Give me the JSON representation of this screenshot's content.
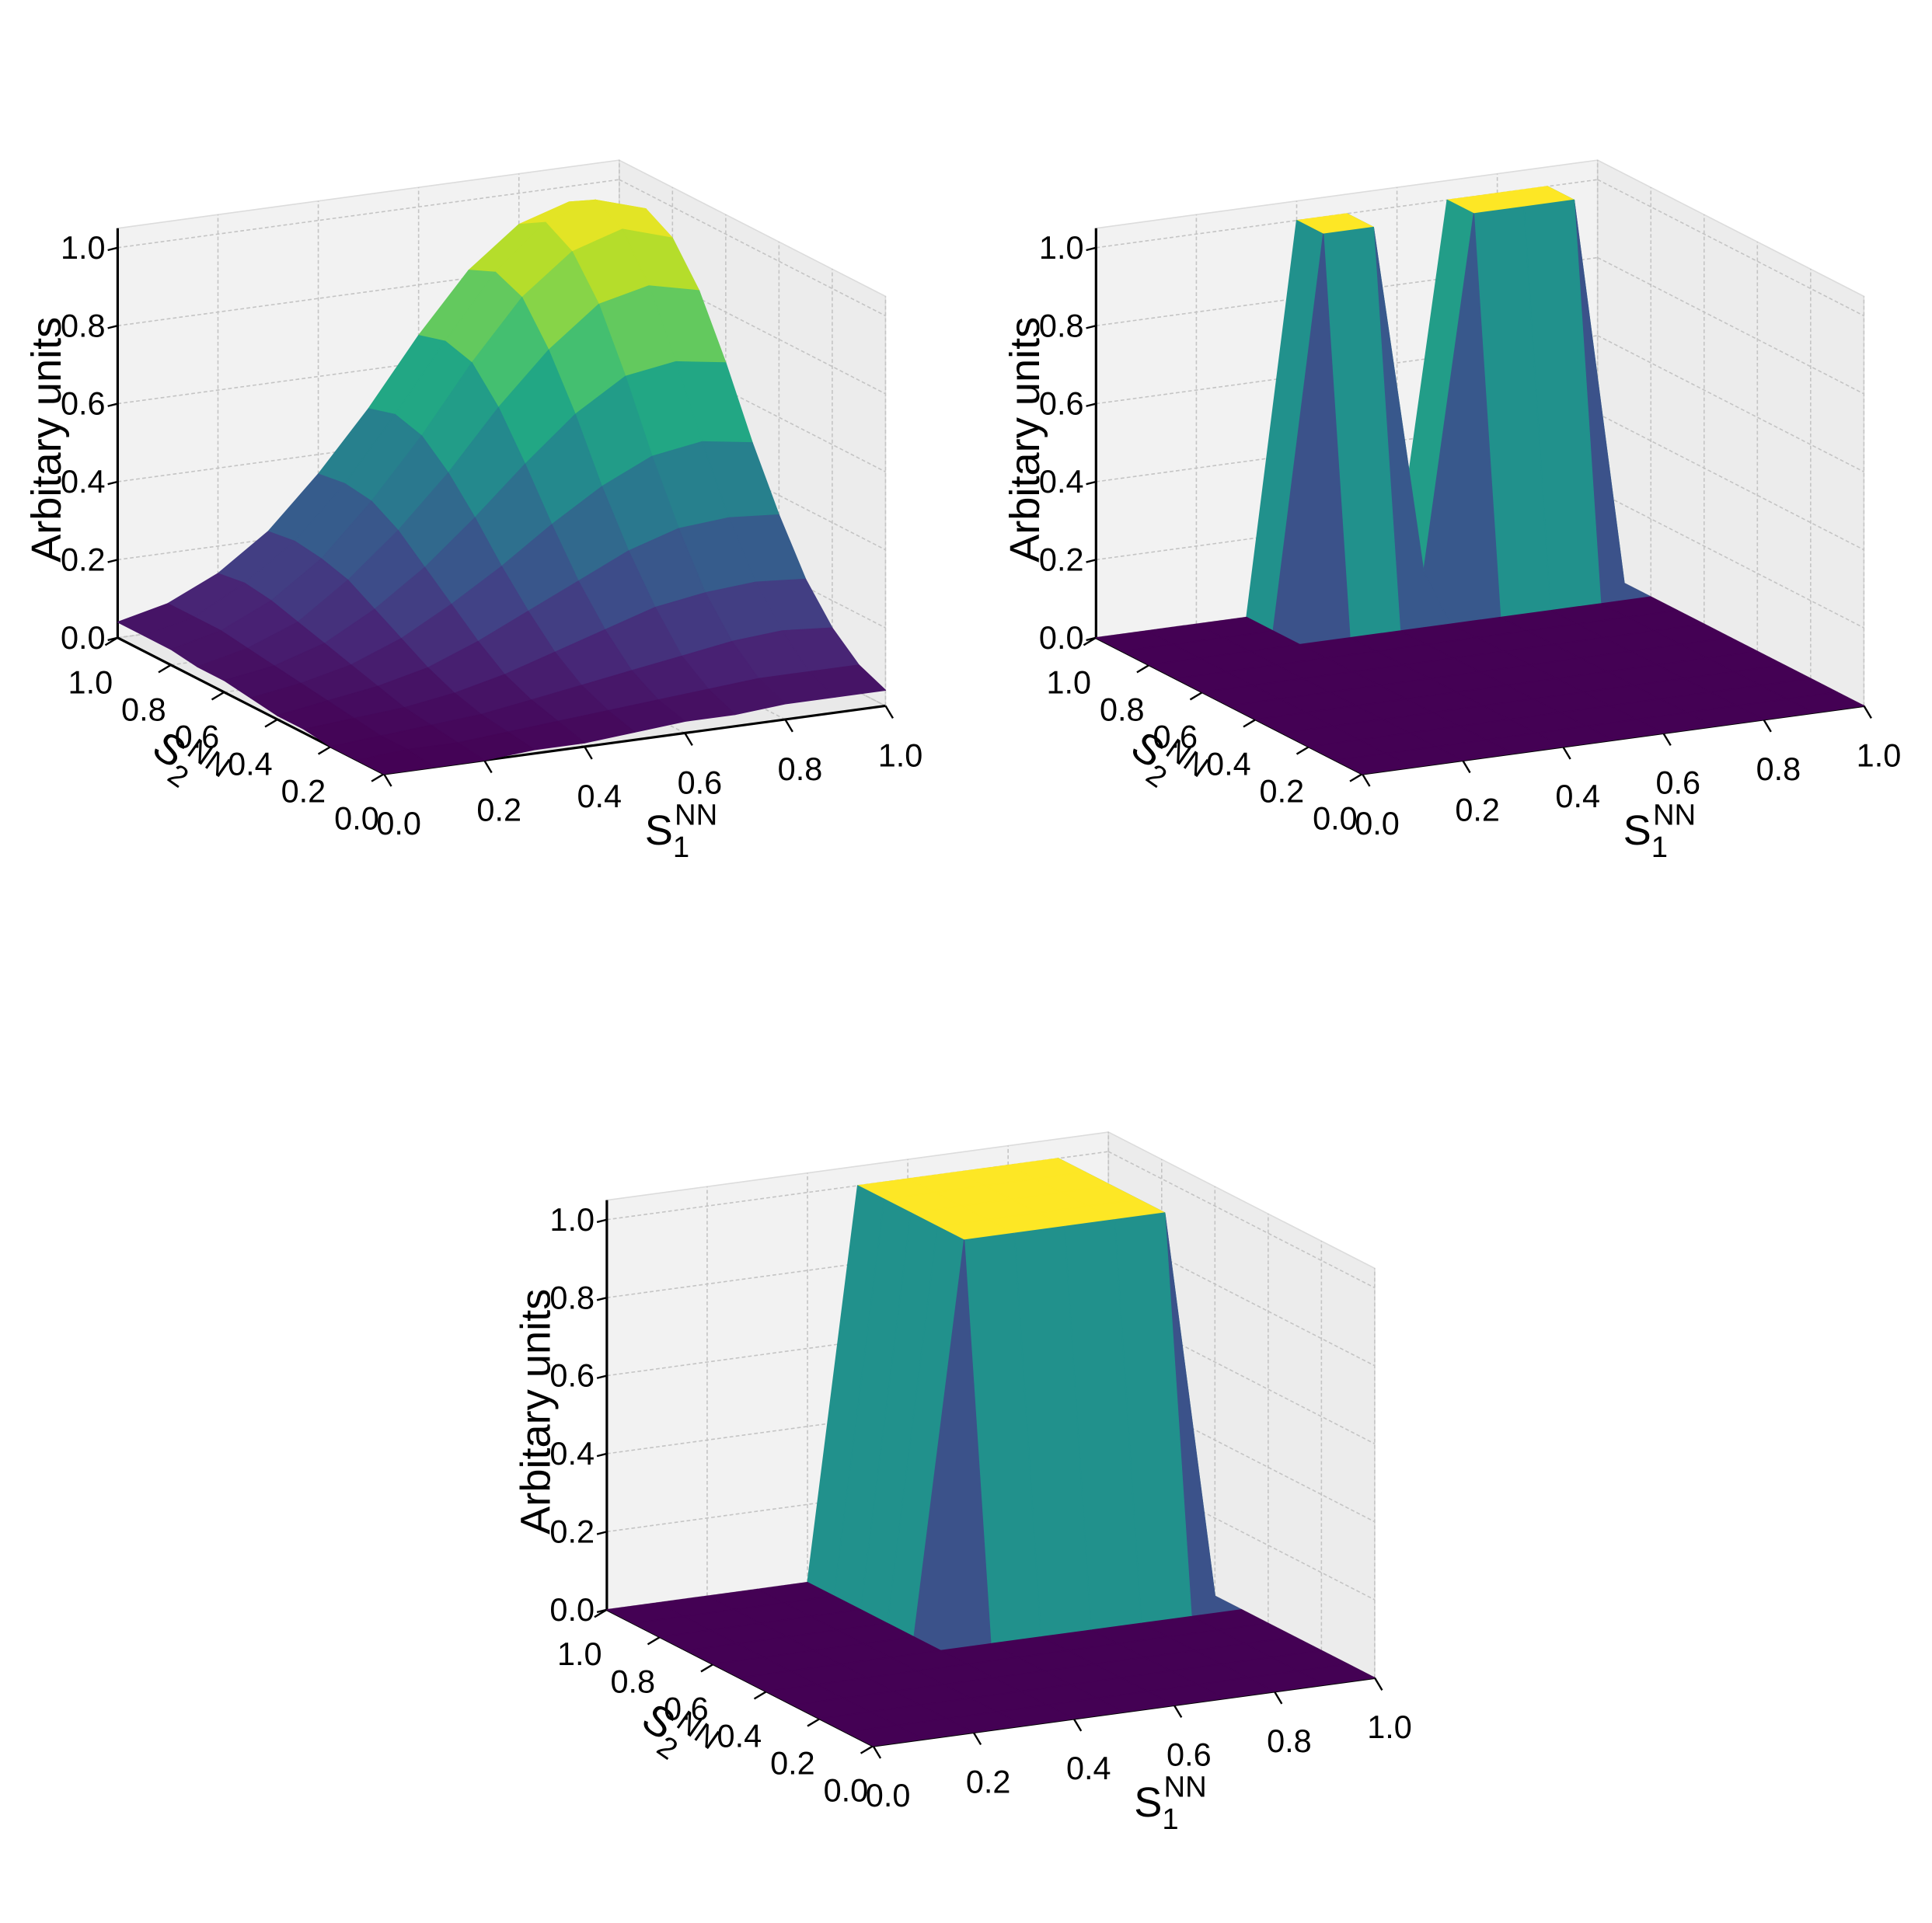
{
  "chart_data": [
    {
      "type": "surface",
      "colormap": "viridis",
      "zlabel": "Arbitary units",
      "xlabel": {
        "text": "S",
        "subscript": "1",
        "superscript": "NN"
      },
      "ylabel": {
        "text": "S",
        "subscript": "2",
        "superscript": "NN"
      },
      "x": [
        0,
        0.1,
        0.2,
        0.3,
        0.4,
        0.5,
        0.6,
        0.7,
        0.8,
        0.9,
        1
      ],
      "y": [
        0,
        0.1,
        0.2,
        0.3,
        0.4,
        0.5,
        0.6,
        0.7,
        0.8,
        0.9,
        1
      ],
      "z": [
        [
          0.0,
          0.0,
          0.0,
          0.01,
          0.01,
          0.02,
          0.03,
          0.03,
          0.04,
          0.04,
          0.04
        ],
        [
          0.0,
          0.01,
          0.01,
          0.02,
          0.03,
          0.04,
          0.05,
          0.06,
          0.07,
          0.07,
          0.07
        ],
        [
          0.0,
          0.01,
          0.02,
          0.03,
          0.05,
          0.07,
          0.09,
          0.11,
          0.13,
          0.14,
          0.13
        ],
        [
          0.01,
          0.02,
          0.03,
          0.05,
          0.08,
          0.12,
          0.16,
          0.2,
          0.22,
          0.23,
          0.22
        ],
        [
          0.01,
          0.03,
          0.05,
          0.08,
          0.13,
          0.19,
          0.25,
          0.31,
          0.35,
          0.36,
          0.35
        ],
        [
          0.02,
          0.04,
          0.07,
          0.12,
          0.19,
          0.27,
          0.36,
          0.44,
          0.5,
          0.52,
          0.5
        ],
        [
          0.03,
          0.05,
          0.09,
          0.16,
          0.25,
          0.36,
          0.48,
          0.59,
          0.67,
          0.69,
          0.67
        ],
        [
          0.03,
          0.06,
          0.11,
          0.2,
          0.31,
          0.44,
          0.59,
          0.72,
          0.82,
          0.85,
          0.82
        ],
        [
          0.04,
          0.07,
          0.13,
          0.22,
          0.35,
          0.5,
          0.67,
          0.82,
          0.92,
          0.96,
          0.92
        ],
        [
          0.04,
          0.07,
          0.14,
          0.23,
          0.36,
          0.52,
          0.69,
          0.85,
          0.96,
          1.0,
          0.96
        ],
        [
          0.04,
          0.07,
          0.13,
          0.22,
          0.35,
          0.5,
          0.67,
          0.82,
          0.92,
          0.96,
          0.92
        ]
      ],
      "xlim": [
        0,
        1
      ],
      "ylim": [
        0,
        1
      ],
      "zlim": [
        0,
        1
      ],
      "xticks": [
        {
          "value": 0,
          "label": "0.0"
        },
        0.2,
        0.4,
        0.6,
        0.8,
        {
          "value": 1,
          "label": "1.0"
        }
      ],
      "yticks": [
        {
          "value": 0,
          "label": "0.0"
        },
        0.2,
        0.4,
        0.6,
        0.8,
        {
          "value": 1,
          "label": "1.0"
        }
      ],
      "zticks": [
        {
          "value": 0,
          "label": "0.0"
        },
        0.2,
        0.4,
        0.6,
        0.8,
        {
          "value": 1,
          "label": "1.0"
        }
      ],
      "grid": true
    },
    {
      "type": "surface",
      "colormap": "viridis",
      "zlabel": "Arbitary units",
      "xlabel": {
        "text": "S",
        "subscript": "1",
        "superscript": "NN"
      },
      "ylabel": {
        "text": "S",
        "subscript": "2",
        "superscript": "NN"
      },
      "x": [
        0,
        0.1,
        0.2,
        0.3,
        0.4,
        0.5,
        0.6,
        0.7,
        0.8,
        0.9,
        1
      ],
      "y": [
        0,
        0.1,
        0.2,
        0.3,
        0.4,
        0.5,
        0.6,
        0.7,
        0.8,
        0.9,
        1
      ],
      "z": [
        [
          0,
          0,
          0,
          0,
          0,
          0,
          0,
          0,
          0,
          0,
          0
        ],
        [
          0,
          0,
          0,
          0,
          0,
          0,
          0,
          0,
          0,
          0,
          0
        ],
        [
          0,
          0,
          0,
          0,
          0,
          0,
          0,
          0,
          0,
          0,
          0
        ],
        [
          0,
          0,
          0,
          0,
          0,
          0,
          0,
          0,
          0,
          0,
          0
        ],
        [
          0,
          0,
          0,
          0,
          0,
          0,
          0,
          0,
          0,
          0,
          0
        ],
        [
          0,
          0,
          0,
          0,
          0,
          0,
          0,
          0,
          0,
          0,
          0
        ],
        [
          0,
          0,
          0,
          0,
          0,
          0,
          0,
          0,
          0,
          0,
          0
        ],
        [
          0,
          0,
          0,
          0,
          0,
          0,
          0,
          0,
          0,
          0,
          0
        ],
        [
          0,
          0,
          0,
          0,
          0,
          0,
          0,
          0,
          0,
          0,
          0
        ],
        [
          0,
          0,
          0,
          0,
          1,
          1,
          0.1,
          1,
          1,
          1,
          0
        ],
        [
          0,
          0,
          0,
          0,
          1,
          1,
          0.1,
          1,
          1,
          1,
          0
        ]
      ],
      "xlim": [
        0,
        1
      ],
      "ylim": [
        0,
        1
      ],
      "zlim": [
        0,
        1
      ],
      "xticks": [
        {
          "value": 0,
          "label": "0.0"
        },
        0.2,
        0.4,
        0.6,
        0.8,
        {
          "value": 1,
          "label": "1.0"
        }
      ],
      "yticks": [
        {
          "value": 0,
          "label": "0.0"
        },
        0.2,
        0.4,
        0.6,
        0.8,
        {
          "value": 1,
          "label": "1.0"
        }
      ],
      "zticks": [
        {
          "value": 0,
          "label": "0.0"
        },
        0.2,
        0.4,
        0.6,
        0.8,
        {
          "value": 1,
          "label": "1.0"
        }
      ],
      "grid": true
    },
    {
      "type": "surface",
      "colormap": "viridis",
      "zlabel": "Arbitary units",
      "xlabel": {
        "text": "S",
        "subscript": "1",
        "superscript": "NN"
      },
      "ylabel": {
        "text": "S",
        "subscript": "2",
        "superscript": "NN"
      },
      "x": [
        0,
        0.1,
        0.2,
        0.3,
        0.4,
        0.5,
        0.6,
        0.7,
        0.8,
        0.9,
        1
      ],
      "y": [
        0,
        0.1,
        0.2,
        0.3,
        0.4,
        0.5,
        0.6,
        0.7,
        0.8,
        0.9,
        1
      ],
      "z": [
        [
          0,
          0,
          0,
          0,
          0,
          0,
          0,
          0,
          0,
          0,
          0
        ],
        [
          0,
          0,
          0,
          0,
          0,
          0,
          0,
          0,
          0,
          0,
          0
        ],
        [
          0,
          0,
          0,
          0,
          0,
          0,
          0,
          0,
          0,
          0,
          0
        ],
        [
          0,
          0,
          0,
          0,
          0,
          0,
          0,
          0,
          0,
          0,
          0
        ],
        [
          0,
          0,
          0,
          0,
          0,
          0,
          0,
          0,
          0,
          0,
          0
        ],
        [
          0,
          0,
          0,
          0,
          0,
          0,
          0,
          0,
          0,
          0,
          0
        ],
        [
          0,
          0,
          0,
          0,
          0,
          1,
          1,
          1,
          1,
          1,
          0
        ],
        [
          0,
          0,
          0,
          0,
          0,
          1,
          1,
          1,
          1,
          1,
          0
        ],
        [
          0,
          0,
          0,
          0,
          0,
          1,
          1,
          1,
          1,
          1,
          0
        ],
        [
          0,
          0,
          0,
          0,
          0,
          1,
          1,
          1,
          1,
          1,
          0
        ],
        [
          0,
          0,
          0,
          0,
          0,
          1,
          1,
          1,
          1,
          1,
          0
        ]
      ],
      "xlim": [
        0,
        1
      ],
      "ylim": [
        0,
        1
      ],
      "zlim": [
        0,
        1
      ],
      "xticks": [
        {
          "value": 0,
          "label": "0.0"
        },
        0.2,
        0.4,
        0.6,
        0.8,
        {
          "value": 1,
          "label": "1.0"
        }
      ],
      "yticks": [
        {
          "value": 0,
          "label": "0.0"
        },
        0.2,
        0.4,
        0.6,
        0.8,
        {
          "value": 1,
          "label": "1.0"
        }
      ],
      "zticks": [
        {
          "value": 0,
          "label": "0.0"
        },
        0.2,
        0.4,
        0.6,
        0.8,
        {
          "value": 1,
          "label": "1.0"
        }
      ],
      "grid": true
    }
  ]
}
